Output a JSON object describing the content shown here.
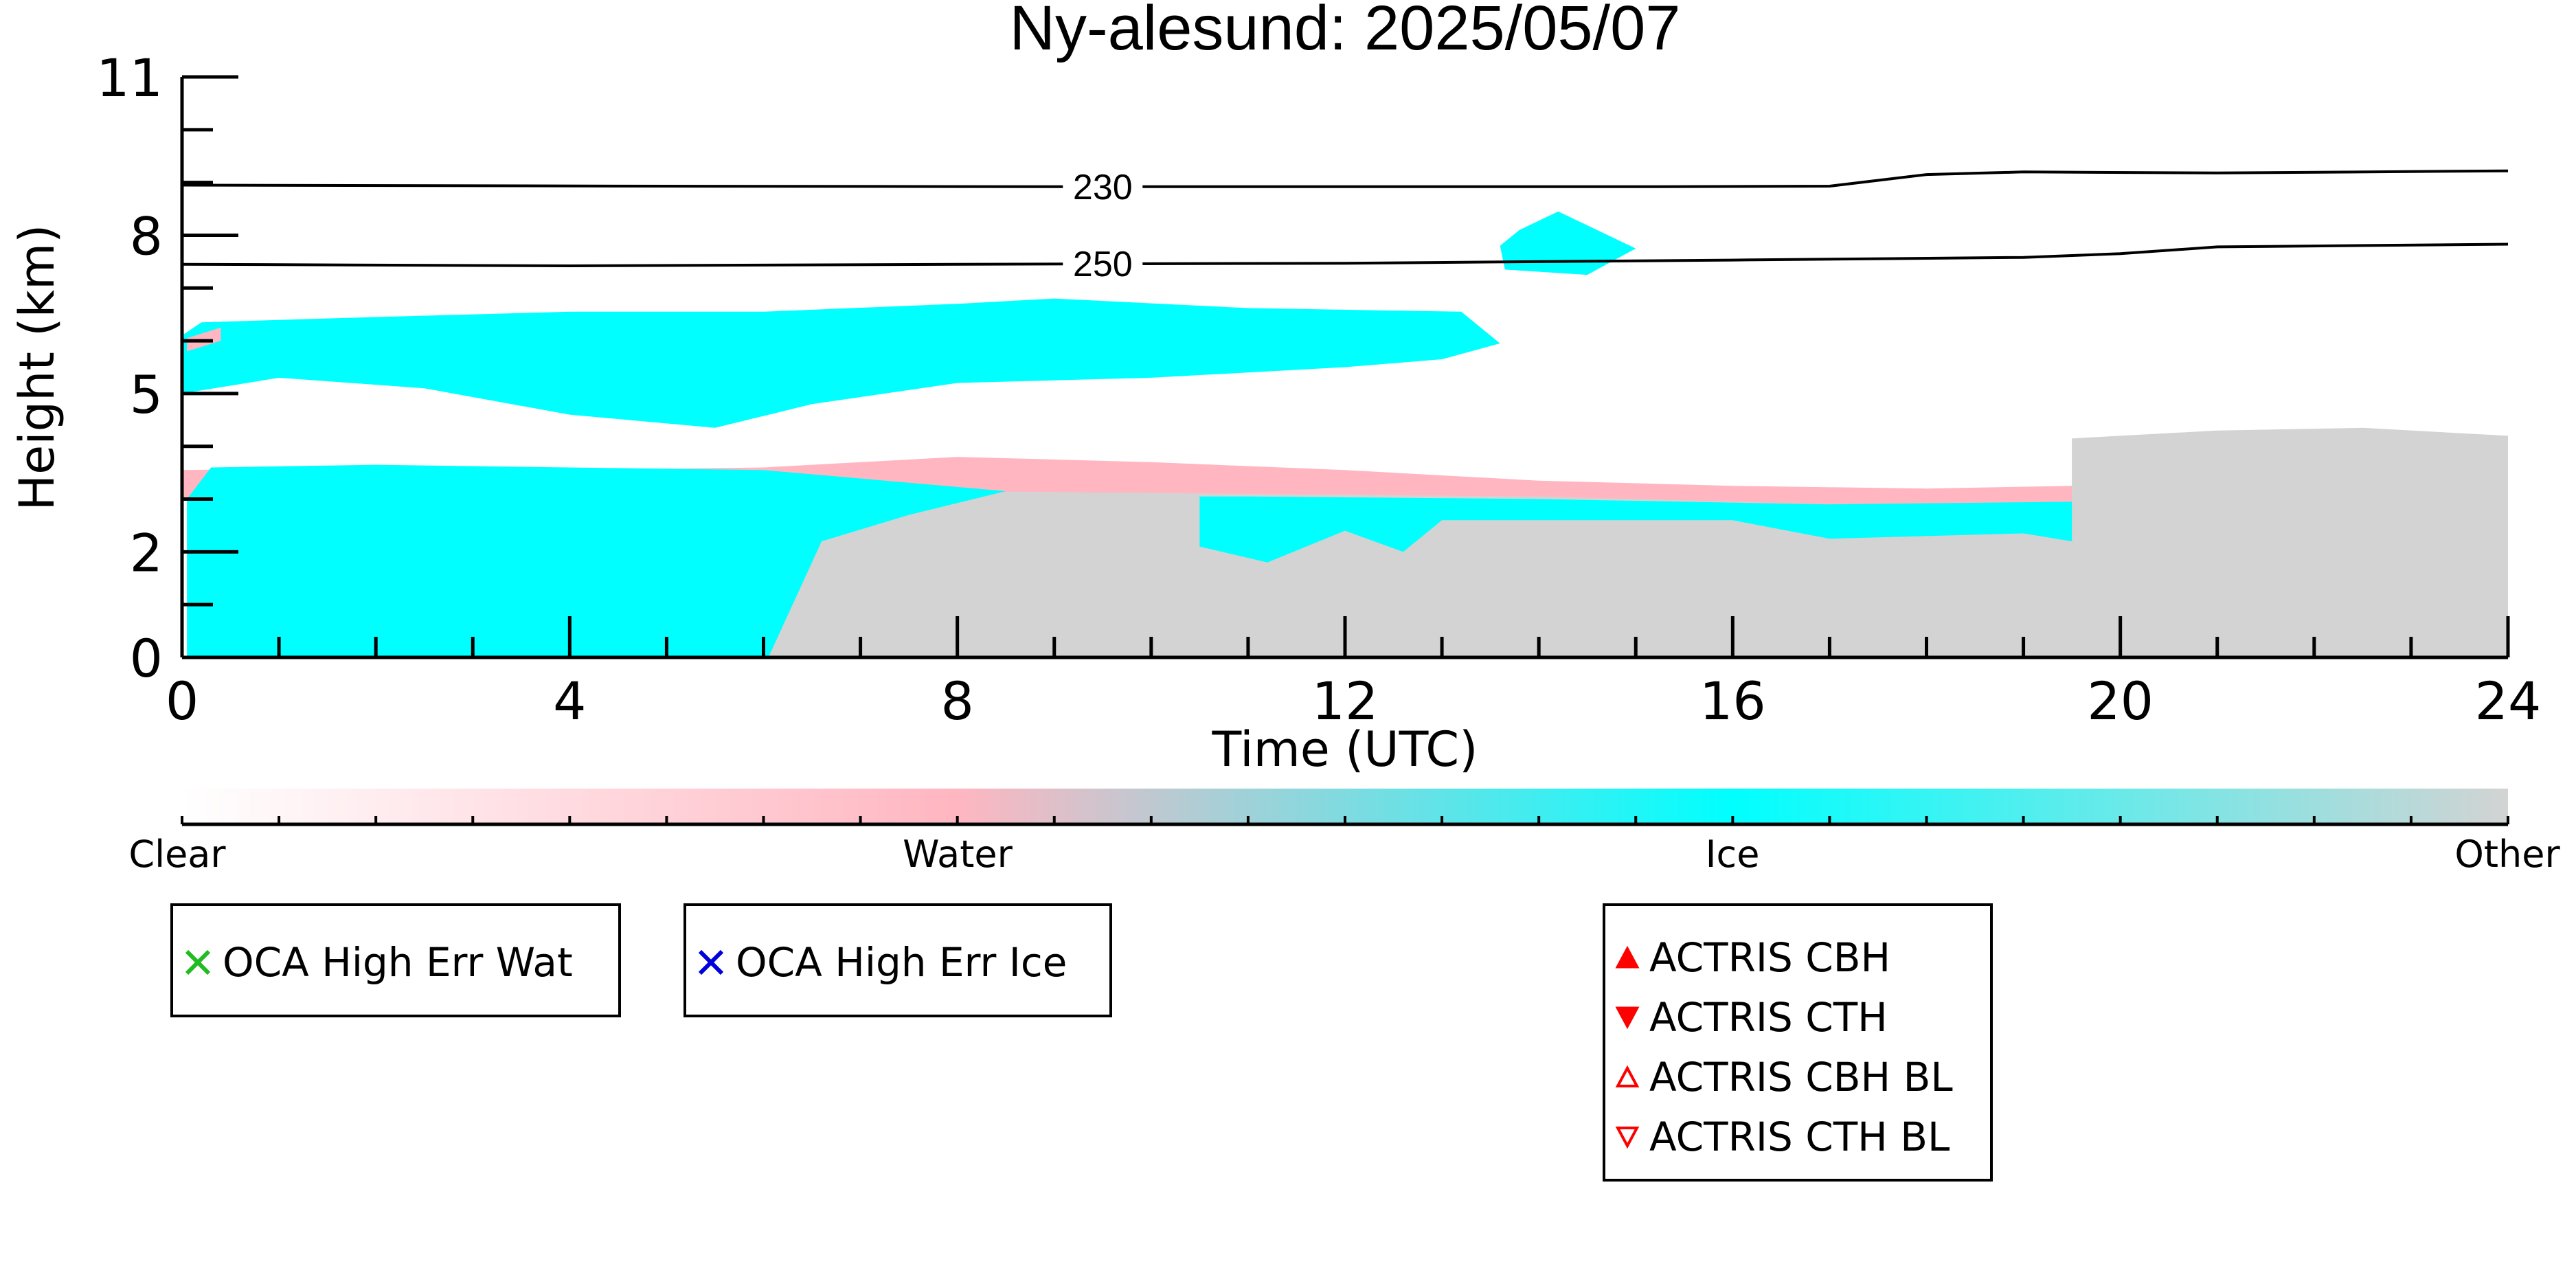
{
  "chart_data": {
    "type": "heatmap",
    "title": "Ny-alesund: 2025/05/07",
    "xlabel": "Time (UTC)",
    "ylabel": "Height (km)",
    "xlim": [
      0,
      24
    ],
    "ylim": [
      0,
      11
    ],
    "x_ticks": [
      0,
      4,
      8,
      12,
      16,
      20,
      24
    ],
    "y_ticks": [
      0,
      2,
      5,
      8,
      11
    ],
    "colors": {
      "Clear": "#ffffff",
      "Water": "#ffb6c1",
      "Ice": "#00ffff",
      "Other": "#d3d3d3"
    },
    "colorbar": {
      "labels": [
        "Clear",
        "Water",
        "Ice",
        "Other"
      ]
    },
    "contours": [
      {
        "label": "230",
        "label_at": 9.5,
        "points": [
          [
            0,
            8.95
          ],
          [
            5,
            8.93
          ],
          [
            9,
            8.92
          ],
          [
            12,
            8.92
          ],
          [
            15,
            8.92
          ],
          [
            17,
            8.93
          ],
          [
            18,
            9.15
          ],
          [
            19,
            9.2
          ],
          [
            21,
            9.18
          ],
          [
            24,
            9.22
          ]
        ]
      },
      {
        "label": "250",
        "label_at": 9.5,
        "points": [
          [
            0,
            7.45
          ],
          [
            4,
            7.42
          ],
          [
            8,
            7.45
          ],
          [
            12,
            7.47
          ],
          [
            16,
            7.53
          ],
          [
            19,
            7.58
          ],
          [
            20,
            7.65
          ],
          [
            21,
            7.78
          ],
          [
            24,
            7.83
          ]
        ]
      }
    ],
    "regions": [
      {
        "class": "Ice",
        "poly": [
          [
            0,
            5.0
          ],
          [
            1.0,
            5.3
          ],
          [
            2.5,
            5.1
          ],
          [
            4.0,
            4.6
          ],
          [
            5.5,
            4.35
          ],
          [
            6.5,
            4.8
          ],
          [
            8.0,
            5.2
          ],
          [
            10.0,
            5.3
          ],
          [
            12.0,
            5.5
          ],
          [
            13.0,
            5.65
          ],
          [
            13.6,
            5.95
          ],
          [
            13.2,
            6.55
          ],
          [
            11.0,
            6.62
          ],
          [
            9.0,
            6.8
          ],
          [
            8.0,
            6.7
          ],
          [
            6.0,
            6.55
          ],
          [
            4.0,
            6.55
          ],
          [
            2.0,
            6.45
          ],
          [
            0.2,
            6.35
          ],
          [
            0,
            6.1
          ]
        ]
      },
      {
        "class": "Water",
        "poly": [
          [
            0.05,
            6.05
          ],
          [
            0.4,
            6.25
          ],
          [
            0.4,
            6.0
          ],
          [
            0.05,
            5.8
          ]
        ]
      },
      {
        "class": "Ice",
        "poly": [
          [
            13.65,
            7.35
          ],
          [
            14.5,
            7.25
          ],
          [
            15.0,
            7.75
          ],
          [
            14.2,
            8.45
          ],
          [
            13.8,
            8.1
          ],
          [
            13.6,
            7.8
          ]
        ]
      },
      {
        "class": "Other",
        "poly": [
          [
            6.0,
            0
          ],
          [
            24,
            0
          ],
          [
            24,
            4.2
          ],
          [
            22.5,
            4.35
          ],
          [
            21.0,
            4.3
          ],
          [
            19.5,
            4.15
          ],
          [
            19.5,
            3.0
          ],
          [
            17.0,
            2.95
          ],
          [
            15.0,
            3.1
          ],
          [
            13.0,
            3.15
          ],
          [
            11.0,
            3.15
          ],
          [
            9.5,
            3.25
          ],
          [
            8.0,
            3.25
          ],
          [
            6.8,
            3.0
          ],
          [
            6.3,
            2.2
          ]
        ]
      },
      {
        "class": "Water",
        "poly": [
          [
            0,
            3.55
          ],
          [
            2.0,
            3.6
          ],
          [
            4.0,
            3.55
          ],
          [
            6.0,
            3.6
          ],
          [
            8.0,
            3.8
          ],
          [
            10.0,
            3.7
          ],
          [
            12.0,
            3.55
          ],
          [
            14.0,
            3.35
          ],
          [
            16.0,
            3.25
          ],
          [
            18.0,
            3.2
          ],
          [
            19.5,
            3.25
          ],
          [
            19.5,
            2.95
          ],
          [
            17.0,
            2.9
          ],
          [
            14.0,
            3.05
          ],
          [
            11.0,
            3.1
          ],
          [
            8.0,
            3.15
          ],
          [
            6.0,
            3.0
          ],
          [
            4.0,
            3.0
          ],
          [
            2.0,
            3.05
          ],
          [
            0,
            3.0
          ]
        ]
      },
      {
        "class": "Ice",
        "poly": [
          [
            0.05,
            0
          ],
          [
            6.05,
            0
          ],
          [
            6.6,
            2.2
          ],
          [
            7.5,
            2.7
          ],
          [
            8.5,
            3.15
          ],
          [
            6.0,
            3.55
          ],
          [
            4.0,
            3.6
          ],
          [
            2.0,
            3.65
          ],
          [
            0.3,
            3.6
          ],
          [
            0.05,
            3.0
          ]
        ]
      },
      {
        "class": "Ice",
        "poly": [
          [
            10.5,
            2.1
          ],
          [
            11.2,
            1.8
          ],
          [
            12.0,
            2.4
          ],
          [
            12.6,
            2.0
          ],
          [
            13.0,
            2.6
          ],
          [
            16.0,
            2.6
          ],
          [
            17.0,
            2.25
          ],
          [
            19.0,
            2.35
          ],
          [
            19.5,
            2.2
          ],
          [
            19.5,
            2.95
          ],
          [
            17.0,
            2.9
          ],
          [
            14.0,
            3.0
          ],
          [
            11.0,
            3.05
          ],
          [
            10.5,
            3.05
          ]
        ]
      }
    ],
    "legend_left_1": {
      "marker": "x",
      "color": "#22bb22",
      "label": "OCA High Err Wat"
    },
    "legend_left_2": {
      "marker": "x",
      "color": "#0000dd",
      "label": "OCA High Err Ice"
    },
    "legend_right": [
      {
        "marker": "triangle-up-filled",
        "color": "#ff0000",
        "label": "ACTRIS CBH"
      },
      {
        "marker": "triangle-down-filled",
        "color": "#ff0000",
        "label": "ACTRIS CTH"
      },
      {
        "marker": "triangle-up-open",
        "color": "#ff0000",
        "label": "ACTRIS CBH BL"
      },
      {
        "marker": "triangle-down-open",
        "color": "#ff0000",
        "label": "ACTRIS CTH BL"
      }
    ]
  }
}
